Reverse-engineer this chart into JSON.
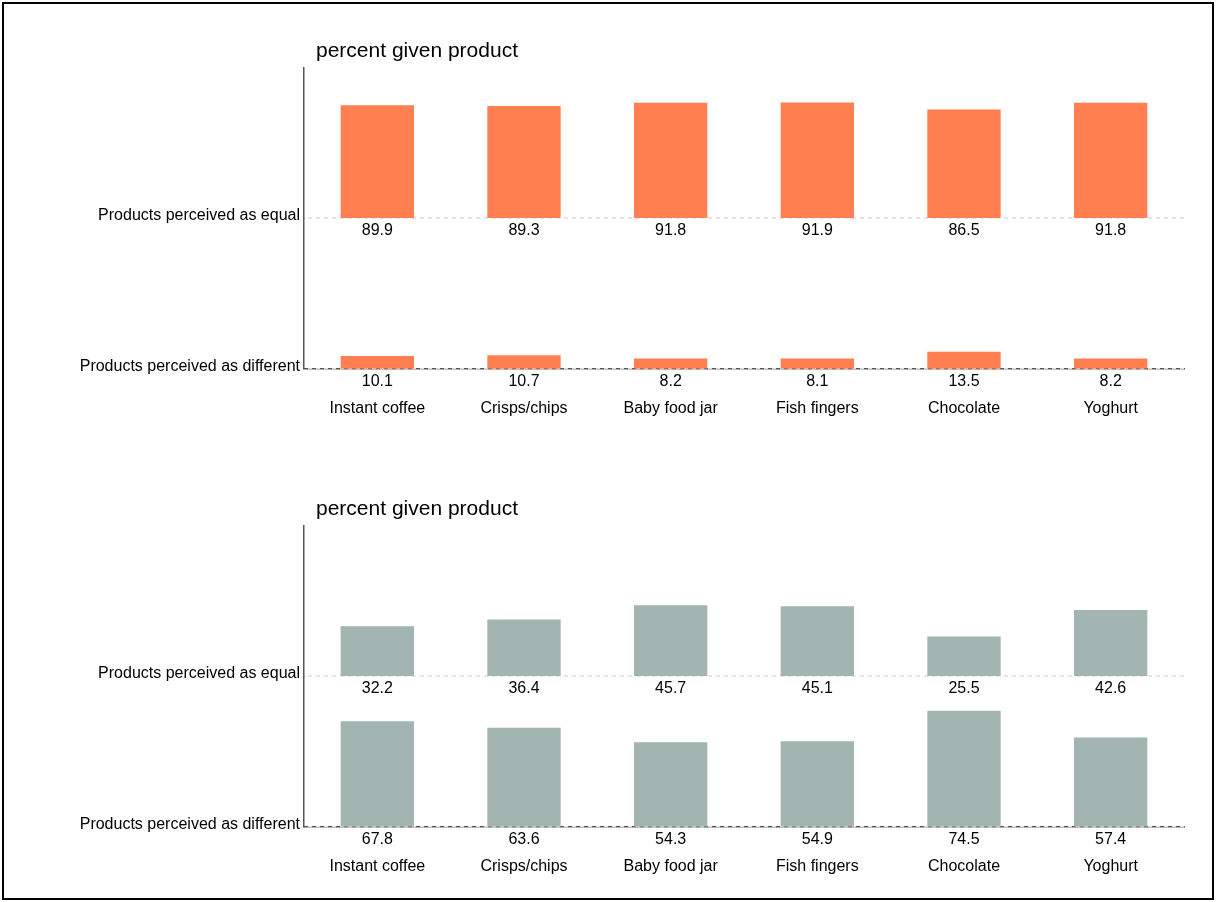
{
  "chart_data": [
    {
      "type": "bar",
      "title": "percent given product",
      "ylabel": "Products perceived as equal",
      "categories": [
        null,
        null,
        null,
        null,
        null,
        null
      ],
      "color": "#ff7f50",
      "values": [
        89.9,
        89.3,
        91.8,
        91.9,
        86.5,
        91.8
      ],
      "data_labels": true,
      "tick_labels": false
    },
    {
      "type": "bar",
      "ylabel": "Products perceived as different",
      "categories": [
        "Instant coffee",
        "Crisps/chips",
        "Baby food jar",
        "Fish fingers",
        "Chocolate",
        "Yoghurt"
      ],
      "color": "#ff7f50",
      "values": [
        10.1,
        10.7,
        8.2,
        8.1,
        13.5,
        8.2
      ],
      "data_labels": true,
      "tick_labels": "x"
    },
    {
      "type": "bar",
      "title": "percent given product",
      "ylabel": "Products perceived as equal",
      "categories": [
        null,
        null,
        null,
        null,
        null,
        null
      ],
      "color": "#a2b5b0",
      "values": [
        32.2,
        36.4,
        45.7,
        45.1,
        25.5,
        42.6
      ],
      "data_labels": true,
      "tick_labels": false
    },
    {
      "type": "bar",
      "ylabel": "Products perceived as different",
      "categories": [
        "Instant coffee",
        "Crisps/chips",
        "Baby food jar",
        "Fish fingers",
        "Chocolate",
        "Yoghurt"
      ],
      "color": "#a2b5b0",
      "values": [
        67.8,
        63.6,
        54.3,
        54.9,
        74.5,
        57.4
      ],
      "data_labels": true,
      "tick_labels": "x"
    }
  ]
}
